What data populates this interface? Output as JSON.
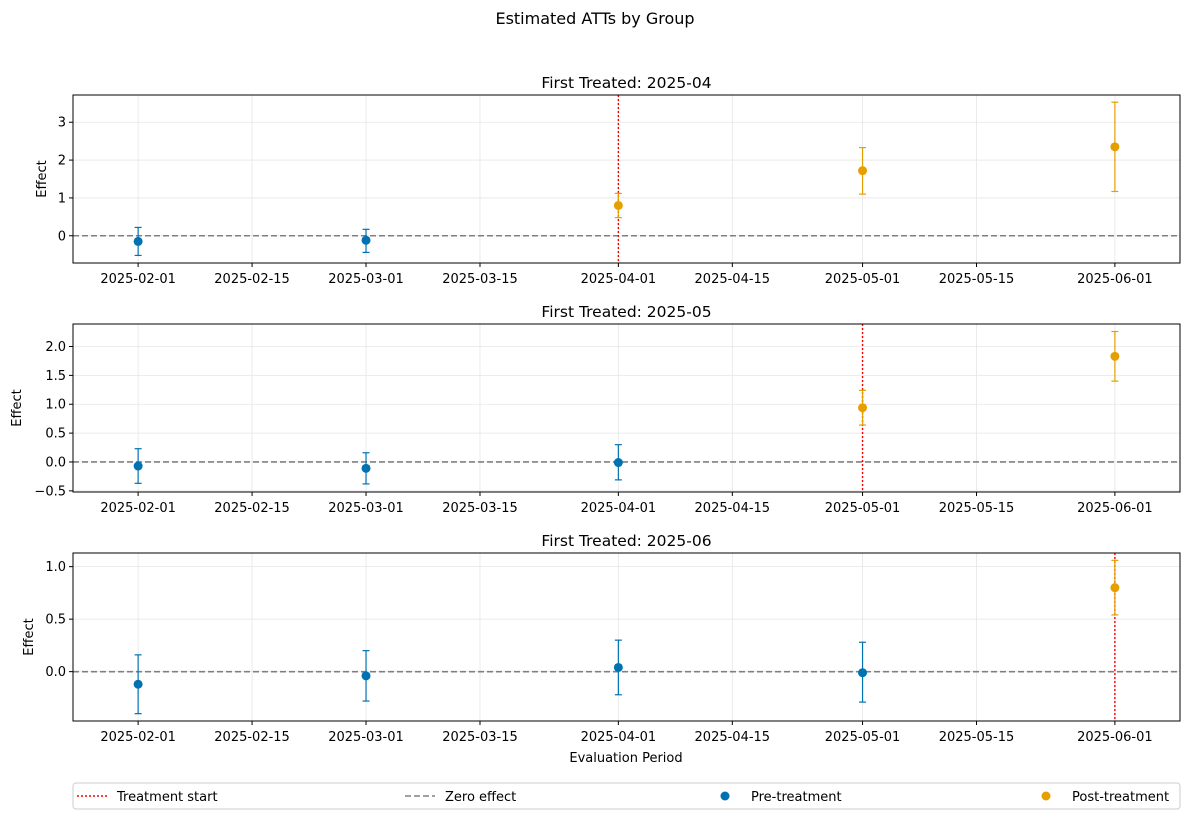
{
  "suptitle": "Estimated ATTs by Group",
  "xlabel": "Evaluation Period",
  "x_ticks": [
    "2025-02-01",
    "2025-02-15",
    "2025-03-01",
    "2025-03-15",
    "2025-04-01",
    "2025-04-15",
    "2025-05-01",
    "2025-05-15",
    "2025-06-01"
  ],
  "colors": {
    "pre": "#0072B2",
    "post": "#E69F00",
    "treat": "#FF0000",
    "zero": "#808080",
    "grid": "#e6e6e6"
  },
  "legend": {
    "placement": "bottom",
    "entries": [
      {
        "label": "Treatment start",
        "style": "dotted-line",
        "color_key": "treat"
      },
      {
        "label": "Zero effect",
        "style": "dashed-line",
        "color_key": "zero"
      },
      {
        "label": "Pre-treatment",
        "style": "marker",
        "color_key": "pre"
      },
      {
        "label": "Post-treatment",
        "style": "marker",
        "color_key": "post"
      }
    ]
  },
  "chart_data": [
    {
      "type": "scatter",
      "title": "First Treated: 2025-04",
      "ylabel": "Effect",
      "treatment_date": "2025-04-01",
      "xlim": [
        "2025-01-24",
        "2025-06-09"
      ],
      "ylim": [
        -0.72,
        3.72
      ],
      "yticks": [
        0,
        1,
        2,
        3
      ],
      "ytick_labels": [
        "0",
        "1",
        "2",
        "3"
      ],
      "grid": true,
      "points": [
        {
          "x": "2025-02-01",
          "y": -0.15,
          "lo": -0.52,
          "hi": 0.22,
          "group": "pre"
        },
        {
          "x": "2025-03-01",
          "y": -0.12,
          "lo": -0.44,
          "hi": 0.17,
          "group": "pre"
        },
        {
          "x": "2025-04-01",
          "y": 0.8,
          "lo": 0.48,
          "hi": 1.12,
          "group": "post"
        },
        {
          "x": "2025-05-01",
          "y": 1.72,
          "lo": 1.1,
          "hi": 2.33,
          "group": "post"
        },
        {
          "x": "2025-06-01",
          "y": 2.35,
          "lo": 1.17,
          "hi": 3.53,
          "group": "post"
        }
      ]
    },
    {
      "type": "scatter",
      "title": "First Treated: 2025-05",
      "ylabel": "Effect",
      "treatment_date": "2025-05-01",
      "xlim": [
        "2025-01-24",
        "2025-06-09"
      ],
      "ylim": [
        -0.52,
        2.39
      ],
      "yticks": [
        -0.5,
        0,
        0.5,
        1,
        1.5,
        2
      ],
      "ytick_labels": [
        "−0.5",
        "0.0",
        "0.5",
        "1.0",
        "1.5",
        "2.0"
      ],
      "grid": true,
      "points": [
        {
          "x": "2025-02-01",
          "y": -0.07,
          "lo": -0.37,
          "hi": 0.23,
          "group": "pre"
        },
        {
          "x": "2025-03-01",
          "y": -0.11,
          "lo": -0.38,
          "hi": 0.16,
          "group": "pre"
        },
        {
          "x": "2025-04-01",
          "y": -0.01,
          "lo": -0.31,
          "hi": 0.3,
          "group": "pre"
        },
        {
          "x": "2025-05-01",
          "y": 0.94,
          "lo": 0.64,
          "hi": 1.24,
          "group": "post"
        },
        {
          "x": "2025-06-01",
          "y": 1.83,
          "lo": 1.4,
          "hi": 2.26,
          "group": "post"
        }
      ]
    },
    {
      "type": "scatter",
      "title": "First Treated: 2025-06",
      "ylabel": "Effect",
      "treatment_date": "2025-06-01",
      "xlim": [
        "2025-01-24",
        "2025-06-09"
      ],
      "ylim": [
        -0.47,
        1.13
      ],
      "yticks": [
        0,
        0.5,
        1
      ],
      "ytick_labels": [
        "0.0",
        "0.5",
        "1.0"
      ],
      "grid": true,
      "points": [
        {
          "x": "2025-02-01",
          "y": -0.12,
          "lo": -0.4,
          "hi": 0.16,
          "group": "pre"
        },
        {
          "x": "2025-03-01",
          "y": -0.04,
          "lo": -0.28,
          "hi": 0.2,
          "group": "pre"
        },
        {
          "x": "2025-04-01",
          "y": 0.04,
          "lo": -0.22,
          "hi": 0.3,
          "group": "pre"
        },
        {
          "x": "2025-05-01",
          "y": -0.01,
          "lo": -0.29,
          "hi": 0.28,
          "group": "pre"
        },
        {
          "x": "2025-06-01",
          "y": 0.8,
          "lo": 0.54,
          "hi": 1.06,
          "group": "post"
        }
      ]
    }
  ]
}
